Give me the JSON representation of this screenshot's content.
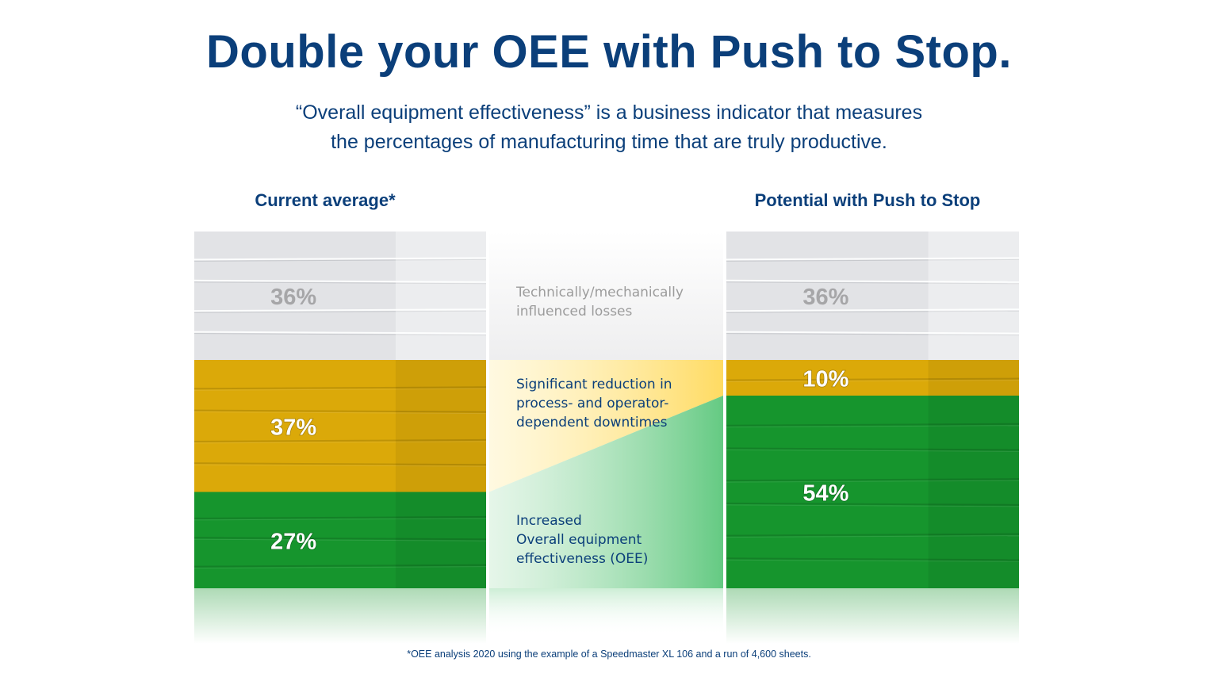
{
  "title": "Double your OEE with Push to Stop.",
  "subtitle": {
    "line1": "“Overall equipment effectiveness” is a business indicator that measures",
    "line2": "the percentages of manufacturing time that are truly productive."
  },
  "footnote": "*OEE analysis 2020 using the example of a Speedmaster XL 106 and a run of 4,600 sheets.",
  "colors": {
    "title": "#0b3f7a",
    "grey_segment": "#e2e3e6",
    "yellow_segment": "#dba909",
    "green_segment": "#16952d",
    "grey_label": "#9c9c9c"
  },
  "chart_data": {
    "type": "bar",
    "stacked": true,
    "categories": [
      "Current average*",
      "Potential with Push to Stop"
    ],
    "series": [
      {
        "name": "Increased Overall equipment effectiveness (OEE)",
        "values": [
          27,
          54
        ],
        "labels": [
          "27%",
          "54%"
        ],
        "color": "#16952d"
      },
      {
        "name": "Significant reduction in process- and operator-dependent downtimes",
        "values": [
          37,
          10
        ],
        "labels": [
          "37%",
          "10%"
        ],
        "color": "#dba909"
      },
      {
        "name": "Technically/mechanically influenced losses",
        "values": [
          36,
          36
        ],
        "labels": [
          "36%",
          "36%"
        ],
        "color": "#e2e3e6"
      }
    ],
    "legend": {
      "position": "center",
      "items": [
        {
          "lines": [
            "Technically/mechanically",
            "influenced losses"
          ],
          "color": "#9c9c9c"
        },
        {
          "lines": [
            "Significant reduction in",
            "process- and operator-",
            "dependent downtimes"
          ],
          "color": "#0b3f7a"
        },
        {
          "lines": [
            "Increased",
            "Overall equipment",
            "effectiveness (OEE)"
          ],
          "color": "#0b3f7a"
        }
      ]
    },
    "ylim": [
      0,
      100
    ]
  }
}
